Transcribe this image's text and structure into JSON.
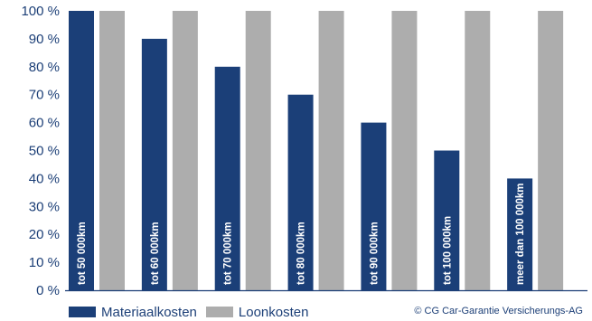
{
  "chart_data": {
    "type": "bar",
    "categories": [
      "tot 50 000km",
      "tot 60 000km",
      "tot 70 000km",
      "tot 80 000km",
      "tot 90 000km",
      "tot 100 000km",
      "meer dan 100 000km"
    ],
    "series": [
      {
        "name": "Materiaalkosten",
        "color": "#1b3f78",
        "values": [
          100,
          90,
          80,
          70,
          60,
          50,
          40
        ]
      },
      {
        "name": "Loonkosten",
        "color": "#adadad",
        "values": [
          100,
          100,
          100,
          100,
          100,
          100,
          100
        ]
      }
    ],
    "yticks": [
      "100 %",
      "90 %",
      "80 %",
      "70 %",
      "60 %",
      "50 %",
      "40 %",
      "30 %",
      "20 %",
      "10 %",
      "0 %"
    ],
    "ylim": [
      0,
      100
    ],
    "xlabel": "",
    "ylabel": "",
    "legend_position": "bottom-left",
    "copyright": "© CG Car-Garantie Versicherungs-AG"
  }
}
